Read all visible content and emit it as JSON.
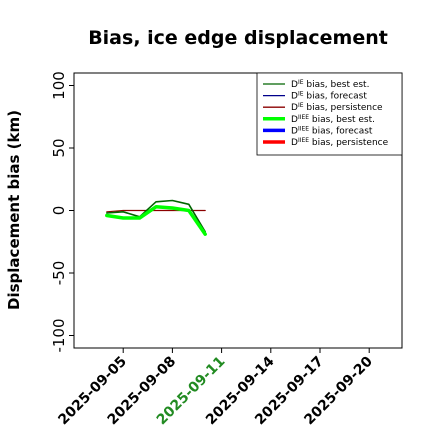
{
  "chart_data": {
    "type": "line",
    "title": "Bias, ice edge displacement",
    "xlabel": "",
    "ylabel": "Displacement bias (km)",
    "ylim": [
      -110,
      110
    ],
    "yticks": [
      100,
      50,
      0,
      -50,
      -100
    ],
    "xlim": [
      "2025-09-02",
      "2025-09-22"
    ],
    "xticks": [
      "2025-09-05",
      "2025-09-08",
      "2025-09-11",
      "2025-09-14",
      "2025-09-17",
      "2025-09-20"
    ],
    "highlight_tick": "2025-09-11",
    "highlight_color": "#228B22",
    "legend_position": "upper-right",
    "legend": [
      {
        "sup": "IE",
        "text": " bias, best est.",
        "color": "#006400",
        "thick": false
      },
      {
        "sup": "IE",
        "text": " bias, forecast",
        "color": "#00008B",
        "thick": false
      },
      {
        "sup": "IE",
        "text": " bias, persistence",
        "color": "#8B0000",
        "thick": false
      },
      {
        "sup": "IIEE",
        "text": " bias, best est.",
        "color": "#00FF00",
        "thick": true
      },
      {
        "sup": "IIEE",
        "text": " bias, forecast",
        "color": "#0000FF",
        "thick": true
      },
      {
        "sup": "IIEE",
        "text": " bias, persistence",
        "color": "#FF0000",
        "thick": true
      }
    ],
    "series": [
      {
        "key": "ie_persistence",
        "color": "#8B0000",
        "width": 1.2,
        "x": [
          "2025-09-04",
          "2025-09-05",
          "2025-09-06",
          "2025-09-07",
          "2025-09-08",
          "2025-09-09",
          "2025-09-10"
        ],
        "y": [
          -1,
          0,
          0,
          0,
          0,
          0,
          0
        ]
      },
      {
        "key": "ie_best_est",
        "color": "#006400",
        "width": 1.6,
        "x": [
          "2025-09-04",
          "2025-09-05",
          "2025-09-06",
          "2025-09-07",
          "2025-09-08",
          "2025-09-09",
          "2025-09-10"
        ],
        "y": [
          -2,
          -1,
          -5,
          7,
          8,
          5,
          -17
        ]
      },
      {
        "key": "iiee_best_est",
        "color": "#00FF00",
        "width": 3.5,
        "x": [
          "2025-09-04",
          "2025-09-05",
          "2025-09-06",
          "2025-09-07",
          "2025-09-08",
          "2025-09-09",
          "2025-09-10"
        ],
        "y": [
          -4,
          -6,
          -6,
          3,
          2,
          0,
          -19
        ]
      }
    ]
  }
}
